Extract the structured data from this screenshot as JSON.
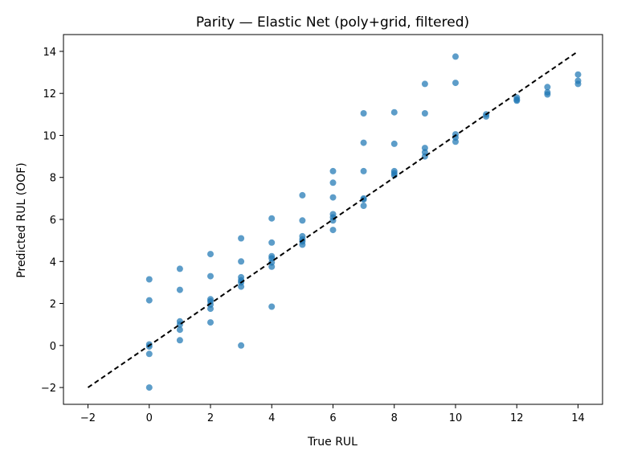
{
  "chart_data": {
    "type": "scatter",
    "title": "Parity — Elastic Net (poly+grid, filtered)",
    "xlabel": "True RUL",
    "ylabel": "Predicted RUL (OOF)",
    "xlim": [
      -2.8,
      14.8
    ],
    "ylim": [
      -2.8,
      14.8
    ],
    "xticks": [
      -2,
      0,
      2,
      4,
      6,
      8,
      10,
      12,
      14
    ],
    "yticks": [
      -2,
      0,
      2,
      4,
      6,
      8,
      10,
      12,
      14
    ],
    "xtick_labels": [
      "−2",
      "0",
      "2",
      "4",
      "6",
      "8",
      "10",
      "12",
      "14"
    ],
    "ytick_labels": [
      "−2",
      "0",
      "2",
      "4",
      "6",
      "8",
      "10",
      "12",
      "14"
    ],
    "grid": false,
    "point_color": "#1f77b4",
    "reference_line": {
      "x": [
        -2,
        14
      ],
      "y": [
        -2,
        14
      ],
      "style": "dashed",
      "color": "#000000"
    },
    "points": [
      [
        0,
        3.15
      ],
      [
        0,
        2.15
      ],
      [
        0,
        0.05
      ],
      [
        0,
        -0.05
      ],
      [
        0,
        -0.4
      ],
      [
        0,
        -2.0
      ],
      [
        1,
        3.65
      ],
      [
        1,
        2.65
      ],
      [
        1,
        1.15
      ],
      [
        1,
        1.0
      ],
      [
        1,
        0.75
      ],
      [
        1,
        0.25
      ],
      [
        2,
        4.35
      ],
      [
        2,
        3.3
      ],
      [
        2,
        2.2
      ],
      [
        2,
        2.1
      ],
      [
        2,
        1.95
      ],
      [
        2,
        1.75
      ],
      [
        2,
        1.1
      ],
      [
        3,
        5.1
      ],
      [
        3,
        4.0
      ],
      [
        3,
        3.25
      ],
      [
        3,
        3.1
      ],
      [
        3,
        3.0
      ],
      [
        3,
        2.8
      ],
      [
        3,
        0.0
      ],
      [
        4,
        6.05
      ],
      [
        4,
        4.9
      ],
      [
        4,
        4.25
      ],
      [
        4,
        4.15
      ],
      [
        4,
        3.95
      ],
      [
        4,
        3.75
      ],
      [
        4,
        1.85
      ],
      [
        5,
        7.15
      ],
      [
        5,
        5.95
      ],
      [
        5,
        5.2
      ],
      [
        5,
        5.05
      ],
      [
        5,
        4.95
      ],
      [
        5,
        4.8
      ],
      [
        6,
        8.3
      ],
      [
        6,
        7.75
      ],
      [
        6,
        7.05
      ],
      [
        6,
        6.25
      ],
      [
        6,
        6.1
      ],
      [
        6,
        5.95
      ],
      [
        6,
        5.5
      ],
      [
        7,
        11.05
      ],
      [
        7,
        9.65
      ],
      [
        7,
        8.3
      ],
      [
        7,
        7.0
      ],
      [
        7,
        6.95
      ],
      [
        7,
        6.65
      ],
      [
        8,
        11.1
      ],
      [
        8,
        9.6
      ],
      [
        8,
        8.3
      ],
      [
        8,
        8.2
      ],
      [
        8,
        8.1
      ],
      [
        9,
        12.45
      ],
      [
        9,
        11.05
      ],
      [
        9,
        9.4
      ],
      [
        9,
        9.2
      ],
      [
        9,
        9.0
      ],
      [
        10,
        13.75
      ],
      [
        10,
        12.5
      ],
      [
        10,
        10.05
      ],
      [
        10,
        9.9
      ],
      [
        10,
        9.7
      ],
      [
        11,
        11.0
      ],
      [
        11,
        10.9
      ],
      [
        12,
        11.8
      ],
      [
        12,
        11.7
      ],
      [
        12,
        11.65
      ],
      [
        13,
        12.3
      ],
      [
        13,
        12.05
      ],
      [
        13,
        11.95
      ],
      [
        14,
        12.9
      ],
      [
        14,
        12.6
      ],
      [
        14,
        12.45
      ]
    ]
  }
}
